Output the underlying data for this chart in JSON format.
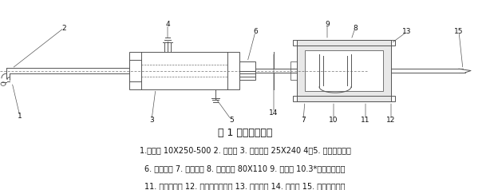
{
  "title": "图 1 沥青烟采样管",
  "title_fontsize": 9,
  "caption_lines": [
    "1.前弯管 10X250-500 2. 采样嘴 3. 冷却套管 25X240 4、5. 冷却水进出口",
    "6. 锁紧手轮 7. 滤筒压盖 8. 保温夹套 80X110 9. 滤筒夹 10.3*玻璃纤维滤筒",
    "11. 滤筒保护网 12. 温控开关指示灯 13. 加热插座 14. 采样管 15. 采样管抽气嘴"
  ],
  "caption_fontsize": 7.0,
  "bg_color": "#ffffff",
  "text_color": "#111111",
  "fig_width": 6.14,
  "fig_height": 2.38,
  "dpi": 100
}
